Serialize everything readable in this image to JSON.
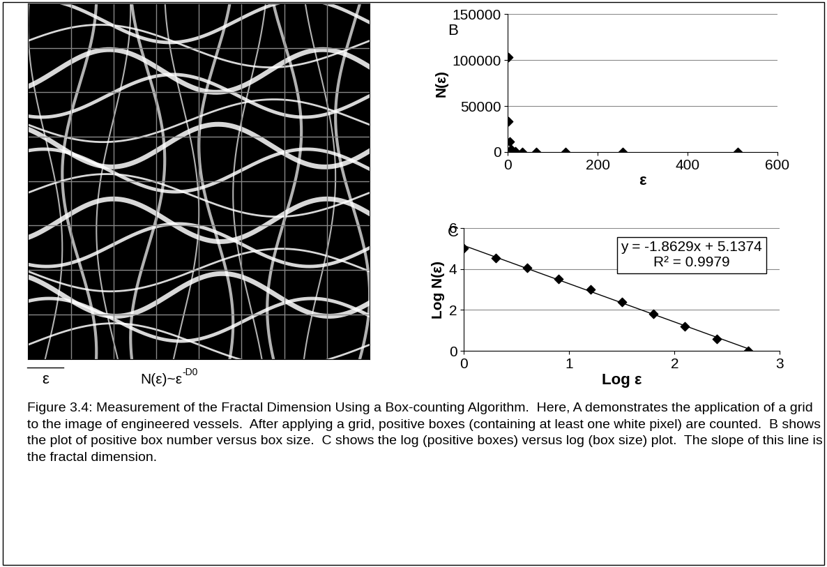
{
  "chart_data": [
    {
      "type": "scatter",
      "panel_label": "B",
      "x_label": "ε",
      "y_label": "N(ε)",
      "series": [
        {
          "type": "scatter",
          "marker": "diamond",
          "color": "#000000",
          "x": [
            1,
            2,
            4,
            8,
            16,
            32,
            64,
            128,
            256,
            512
          ],
          "values": [
            103000,
            33000,
            11000,
            3200,
            1000,
            250,
            64,
            16,
            4,
            1
          ]
        }
      ],
      "xlim": [
        0,
        600
      ],
      "xticks": [
        0,
        200,
        400,
        600
      ],
      "ylim": [
        0,
        150000
      ],
      "yticks": [
        0,
        50000,
        100000,
        150000
      ],
      "grid": "y"
    },
    {
      "type": "scatter",
      "panel_label": "C",
      "x_label": "Log ε",
      "y_label": "Log N(ε)",
      "series": [
        {
          "type": "scatter",
          "marker": "diamond",
          "color": "#000000",
          "x": [
            0,
            0.3,
            0.6,
            0.9,
            1.2,
            1.5,
            1.8,
            2.1,
            2.4,
            2.7
          ],
          "values": [
            5.01,
            4.52,
            4.04,
            3.51,
            3.0,
            2.4,
            1.81,
            1.2,
            0.6,
            0.0
          ]
        },
        {
          "type": "line",
          "line_style": "solid",
          "color": "#000000",
          "x": [
            0,
            2.7
          ],
          "values": [
            5.14,
            0.11
          ]
        }
      ],
      "annotations": [
        "y = -1.8629x + 5.1374",
        "R² = 0.9979"
      ],
      "xlim": [
        0,
        3
      ],
      "xticks": [
        0,
        1,
        2,
        3
      ],
      "ylim": [
        0,
        6
      ],
      "yticks": [
        0,
        2,
        4,
        6
      ],
      "grid": "y"
    }
  ],
  "panel_a": {
    "scale_label": "ε",
    "formula": {
      "base": "N(ε)~ε",
      "superscript": "-D0"
    }
  },
  "caption": "Figure 3.4: Measurement of the Fractal Dimension Using a Box-counting Algorithm.  Here, A demonstrates the application of a grid to the image of engineered vessels.  After applying a grid, positive boxes (containing at least one white pixel) are counted.  B shows the plot of positive box number versus box size.  C shows the log (positive boxes) versus log (box size) plot.  The slope of this line is the fractal dimension."
}
